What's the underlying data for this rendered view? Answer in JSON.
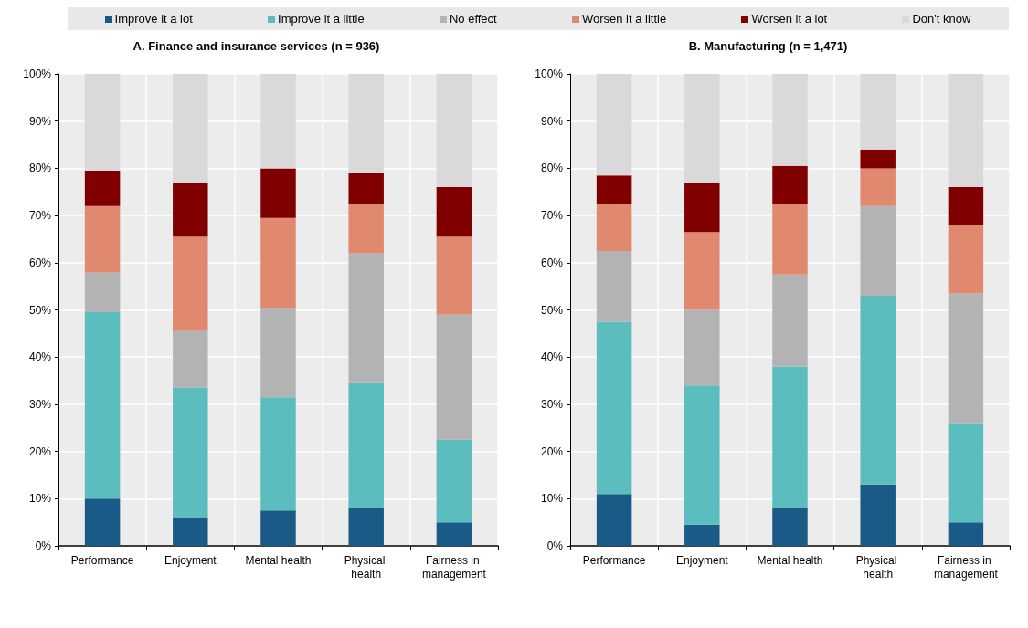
{
  "chart_data": [
    {
      "type": "bar",
      "stacked": true,
      "title": "A. Finance and insurance services (n = 936)",
      "categories": [
        "Performance",
        "Enjoyment",
        "Mental health",
        "Physical health",
        "Fairness in management"
      ],
      "legend": "top",
      "grid": true,
      "ylim": [
        0,
        100
      ],
      "yticks": [
        {
          "value": 0,
          "label": "0%"
        },
        {
          "value": 10,
          "label": "10%"
        },
        {
          "value": 20,
          "label": "20%"
        },
        {
          "value": 30,
          "label": "30%"
        },
        {
          "value": 40,
          "label": "40%"
        },
        {
          "value": 50,
          "label": "50%"
        },
        {
          "value": 60,
          "label": "60%"
        },
        {
          "value": 70,
          "label": "70%"
        },
        {
          "value": 80,
          "label": "80%"
        },
        {
          "value": 90,
          "label": "90%"
        },
        {
          "value": 100,
          "label": "100%"
        }
      ],
      "series": [
        {
          "name": "Improve it a lot",
          "color": "#1a5a86",
          "values": [
            10,
            6,
            7.5,
            8,
            5
          ]
        },
        {
          "name": "Improve it a little",
          "color": "#5bbdbd",
          "values": [
            39.5,
            27.5,
            24,
            26.5,
            17.5
          ]
        },
        {
          "name": "No effect",
          "color": "#b3b3b3",
          "values": [
            8.5,
            12,
            19,
            27.5,
            26.5
          ]
        },
        {
          "name": "Worsen it a little",
          "color": "#e0896e",
          "values": [
            14,
            20,
            19,
            10.5,
            16.5
          ]
        },
        {
          "name": "Worsen it a lot",
          "color": "#800000",
          "values": [
            7.5,
            11.5,
            10.5,
            6.5,
            10.5
          ]
        },
        {
          "name": "Don't know",
          "color": "#d9d9d9",
          "values": [
            20.5,
            23,
            20,
            21,
            24
          ]
        }
      ]
    },
    {
      "type": "bar",
      "stacked": true,
      "title": "B. Manufacturing (n = 1,471)",
      "categories": [
        "Performance",
        "Enjoyment",
        "Mental health",
        "Physical health",
        "Fairness in management"
      ],
      "grid": true,
      "ylim": [
        0,
        100
      ],
      "yticks": [
        {
          "value": 0,
          "label": "0%"
        },
        {
          "value": 10,
          "label": "10%"
        },
        {
          "value": 20,
          "label": "20%"
        },
        {
          "value": 30,
          "label": "30%"
        },
        {
          "value": 40,
          "label": "40%"
        },
        {
          "value": 50,
          "label": "50%"
        },
        {
          "value": 60,
          "label": "60%"
        },
        {
          "value": 70,
          "label": "70%"
        },
        {
          "value": 80,
          "label": "80%"
        },
        {
          "value": 90,
          "label": "90%"
        },
        {
          "value": 100,
          "label": "100%"
        }
      ],
      "series": [
        {
          "color": "#1a5a86",
          "values": [
            11,
            4.5,
            8,
            13,
            5
          ]
        },
        {
          "color": "#5bbdbd",
          "values": [
            36.5,
            29.5,
            30,
            40,
            21
          ]
        },
        {
          "color": "#b3b3b3",
          "values": [
            15,
            16,
            19.5,
            19,
            27.5
          ]
        },
        {
          "color": "#e0896e",
          "values": [
            10,
            16.5,
            15,
            8,
            14.5
          ]
        },
        {
          "color": "#800000",
          "values": [
            6,
            10.5,
            8,
            4,
            8
          ]
        },
        {
          "color": "#d9d9d9",
          "values": [
            21.5,
            23,
            19.5,
            16,
            24
          ]
        }
      ]
    }
  ]
}
